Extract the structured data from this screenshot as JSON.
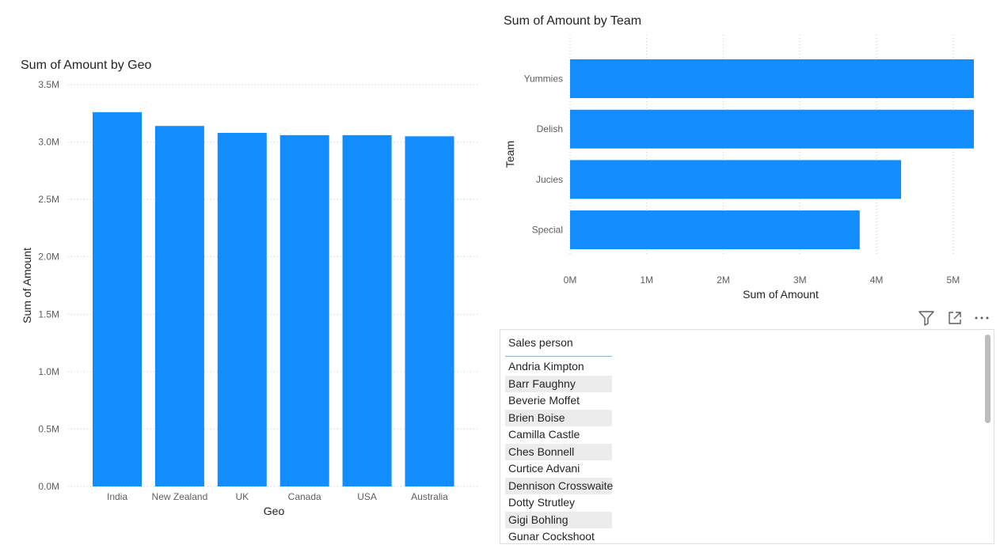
{
  "geo_chart": {
    "title": "Sum of Amount by Geo",
    "xlabel": "Geo",
    "ylabel": "Sum of Amount"
  },
  "team_chart": {
    "title": "Sum of Amount by Team",
    "xlabel": "Sum of Amount",
    "ylabel": "Team"
  },
  "table": {
    "header": "Sales person",
    "rows": [
      "Andria Kimpton",
      "Barr Faughny",
      "Beverie Moffet",
      "Brien Boise",
      "Camilla Castle",
      "Ches Bonnell",
      "Curtice Advani",
      "Dennison Crosswaite",
      "Dotty Strutley",
      "Gigi Bohling",
      "Gunar Cockshoot"
    ]
  },
  "header_icons": [
    "filter-icon",
    "focus-mode-icon",
    "more-options-icon"
  ],
  "colors": {
    "bar": "#118dff",
    "grid": "#c8c6c4",
    "axis_text": "#605e5c"
  },
  "chart_data": [
    {
      "type": "bar",
      "title": "Sum of Amount by Geo",
      "xlabel": "Geo",
      "ylabel": "Sum of Amount",
      "categories": [
        "India",
        "New Zealand",
        "UK",
        "Canada",
        "USA",
        "Australia"
      ],
      "values": [
        3.26,
        3.14,
        3.08,
        3.06,
        3.06,
        3.05
      ],
      "unit": "M",
      "ylim": [
        0,
        3.5
      ],
      "yticks": [
        "0.0M",
        "0.5M",
        "1.0M",
        "1.5M",
        "2.0M",
        "2.5M",
        "3.0M",
        "3.5M"
      ],
      "grid": true
    },
    {
      "type": "bar",
      "orientation": "horizontal",
      "title": "Sum of Amount by Team",
      "xlabel": "Sum of Amount",
      "ylabel": "Team",
      "categories": [
        "Yummies",
        "Delish",
        "Jucies",
        "Special"
      ],
      "values": [
        5.27,
        5.27,
        4.32,
        3.78
      ],
      "unit": "M",
      "xlim": [
        0,
        5.27
      ],
      "xticks": [
        "0M",
        "1M",
        "2M",
        "3M",
        "4M",
        "5M"
      ],
      "grid": true
    }
  ]
}
